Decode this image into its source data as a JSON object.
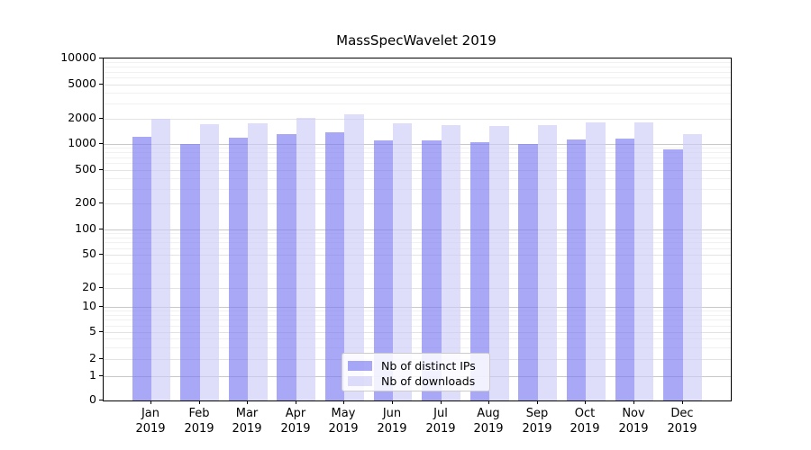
{
  "title": "MassSpecWavelet 2019",
  "chart_data": {
    "type": "bar",
    "title": "MassSpecWavelet 2019",
    "categories": [
      "Jan 2019",
      "Feb 2019",
      "Mar 2019",
      "Apr 2019",
      "May 2019",
      "Jun 2019",
      "Jul 2019",
      "Aug 2019",
      "Sep 2019",
      "Oct 2019",
      "Nov 2019",
      "Dec 2019"
    ],
    "x_tick_line1": [
      "Jan",
      "Feb",
      "Mar",
      "Apr",
      "May",
      "Jun",
      "Jul",
      "Aug",
      "Sep",
      "Oct",
      "Nov",
      "Dec"
    ],
    "x_tick_line2": "2019",
    "series": [
      {
        "name": "Nb of distinct IPs",
        "color": "rgba(122,122,242,0.65)",
        "color_hex": "#a8a8f6",
        "values": [
          1220,
          990,
          1190,
          1300,
          1380,
          1110,
          1100,
          1060,
          1010,
          1130,
          1150,
          870
        ]
      },
      {
        "name": "Nb of downloads",
        "color": "rgba(205,205,247,0.65)",
        "color_hex": "#dedefa",
        "values": [
          2010,
          1740,
          1770,
          2030,
          2270,
          1770,
          1700,
          1630,
          1680,
          1800,
          1810,
          1330
        ]
      }
    ],
    "yscale": "symlog",
    "y_ticks": [
      0,
      1,
      2,
      5,
      10,
      20,
      50,
      100,
      200,
      500,
      1000,
      2000,
      5000,
      10000
    ],
    "ylim": [
      0,
      10000
    ],
    "xlabel": "",
    "ylabel": "",
    "grid": true,
    "legend_position": "lower center"
  }
}
